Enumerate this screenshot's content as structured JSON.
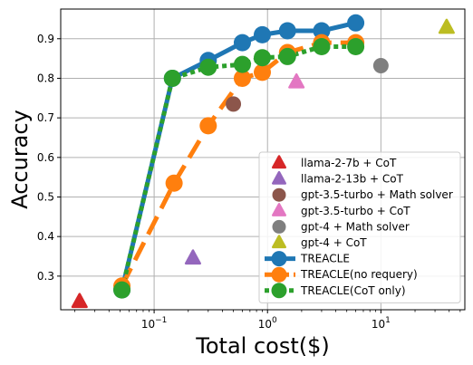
{
  "chart_data": {
    "type": "scatter",
    "title": "",
    "xlabel": "Total cost($)",
    "ylabel": "Accuracy",
    "xscale": "log",
    "xlim": [
      0.015,
      55
    ],
    "ylim": [
      0.215,
      0.975
    ],
    "grid": true,
    "legend_position": "lower-right",
    "x_ticks": [
      {
        "value": 0.1,
        "base": "10",
        "exp": "−1"
      },
      {
        "value": 1,
        "base": "10",
        "exp": "0"
      },
      {
        "value": 10,
        "base": "10",
        "exp": "1"
      }
    ],
    "y_ticks": [
      {
        "value": 0.3,
        "label": "0.3"
      },
      {
        "value": 0.4,
        "label": "0.4"
      },
      {
        "value": 0.5,
        "label": "0.5"
      },
      {
        "value": 0.6,
        "label": "0.6"
      },
      {
        "value": 0.7,
        "label": "0.7"
      },
      {
        "value": 0.8,
        "label": "0.8"
      },
      {
        "value": 0.9,
        "label": "0.9"
      }
    ],
    "series": [
      {
        "name": "llama-2-7b + CoT",
        "kind": "marker",
        "marker": "triangle",
        "color": "#d62728",
        "x": [
          0.022
        ],
        "y": [
          0.235
        ]
      },
      {
        "name": "llama-2-13b + CoT",
        "kind": "marker",
        "marker": "triangle",
        "color": "#9467bd",
        "x": [
          0.22
        ],
        "y": [
          0.345
        ]
      },
      {
        "name": "gpt-3.5-turbo + Math solver",
        "kind": "marker",
        "marker": "circle",
        "color": "#8c564b",
        "x": [
          0.5
        ],
        "y": [
          0.735
        ]
      },
      {
        "name": "gpt-3.5-turbo + CoT",
        "kind": "marker",
        "marker": "triangle",
        "color": "#e377c2",
        "x": [
          1.8
        ],
        "y": [
          0.79
        ]
      },
      {
        "name": "gpt-4 + Math solver",
        "kind": "marker",
        "marker": "circle",
        "color": "#7f7f7f",
        "x": [
          10
        ],
        "y": [
          0.832
        ]
      },
      {
        "name": "gpt-4 + CoT",
        "kind": "marker",
        "marker": "triangle",
        "color": "#bcbd22",
        "x": [
          38
        ],
        "y": [
          0.928
        ]
      },
      {
        "name": "TREACLE",
        "kind": "line",
        "linestyle": "solid",
        "color": "#1f77b4",
        "x": [
          0.052,
          0.145,
          0.3,
          0.6,
          0.9,
          1.5,
          3.0,
          6.0
        ],
        "y": [
          0.265,
          0.8,
          0.845,
          0.89,
          0.91,
          0.92,
          0.92,
          0.94
        ]
      },
      {
        "name": "TREACLE(no requery)",
        "kind": "line",
        "linestyle": "dashed",
        "color": "#ff7f0e",
        "x": [
          0.052,
          0.15,
          0.3,
          0.6,
          0.9,
          1.5,
          3.0,
          6.0
        ],
        "y": [
          0.275,
          0.535,
          0.68,
          0.8,
          0.815,
          0.865,
          0.89,
          0.89
        ]
      },
      {
        "name": "TREACLE(CoT only)",
        "kind": "line",
        "linestyle": "dotted",
        "color": "#2ca02c",
        "x": [
          0.052,
          0.145,
          0.3,
          0.6,
          0.9,
          1.5,
          3.0,
          6.0
        ],
        "y": [
          0.265,
          0.8,
          0.828,
          0.835,
          0.852,
          0.855,
          0.88,
          0.88
        ]
      }
    ]
  }
}
